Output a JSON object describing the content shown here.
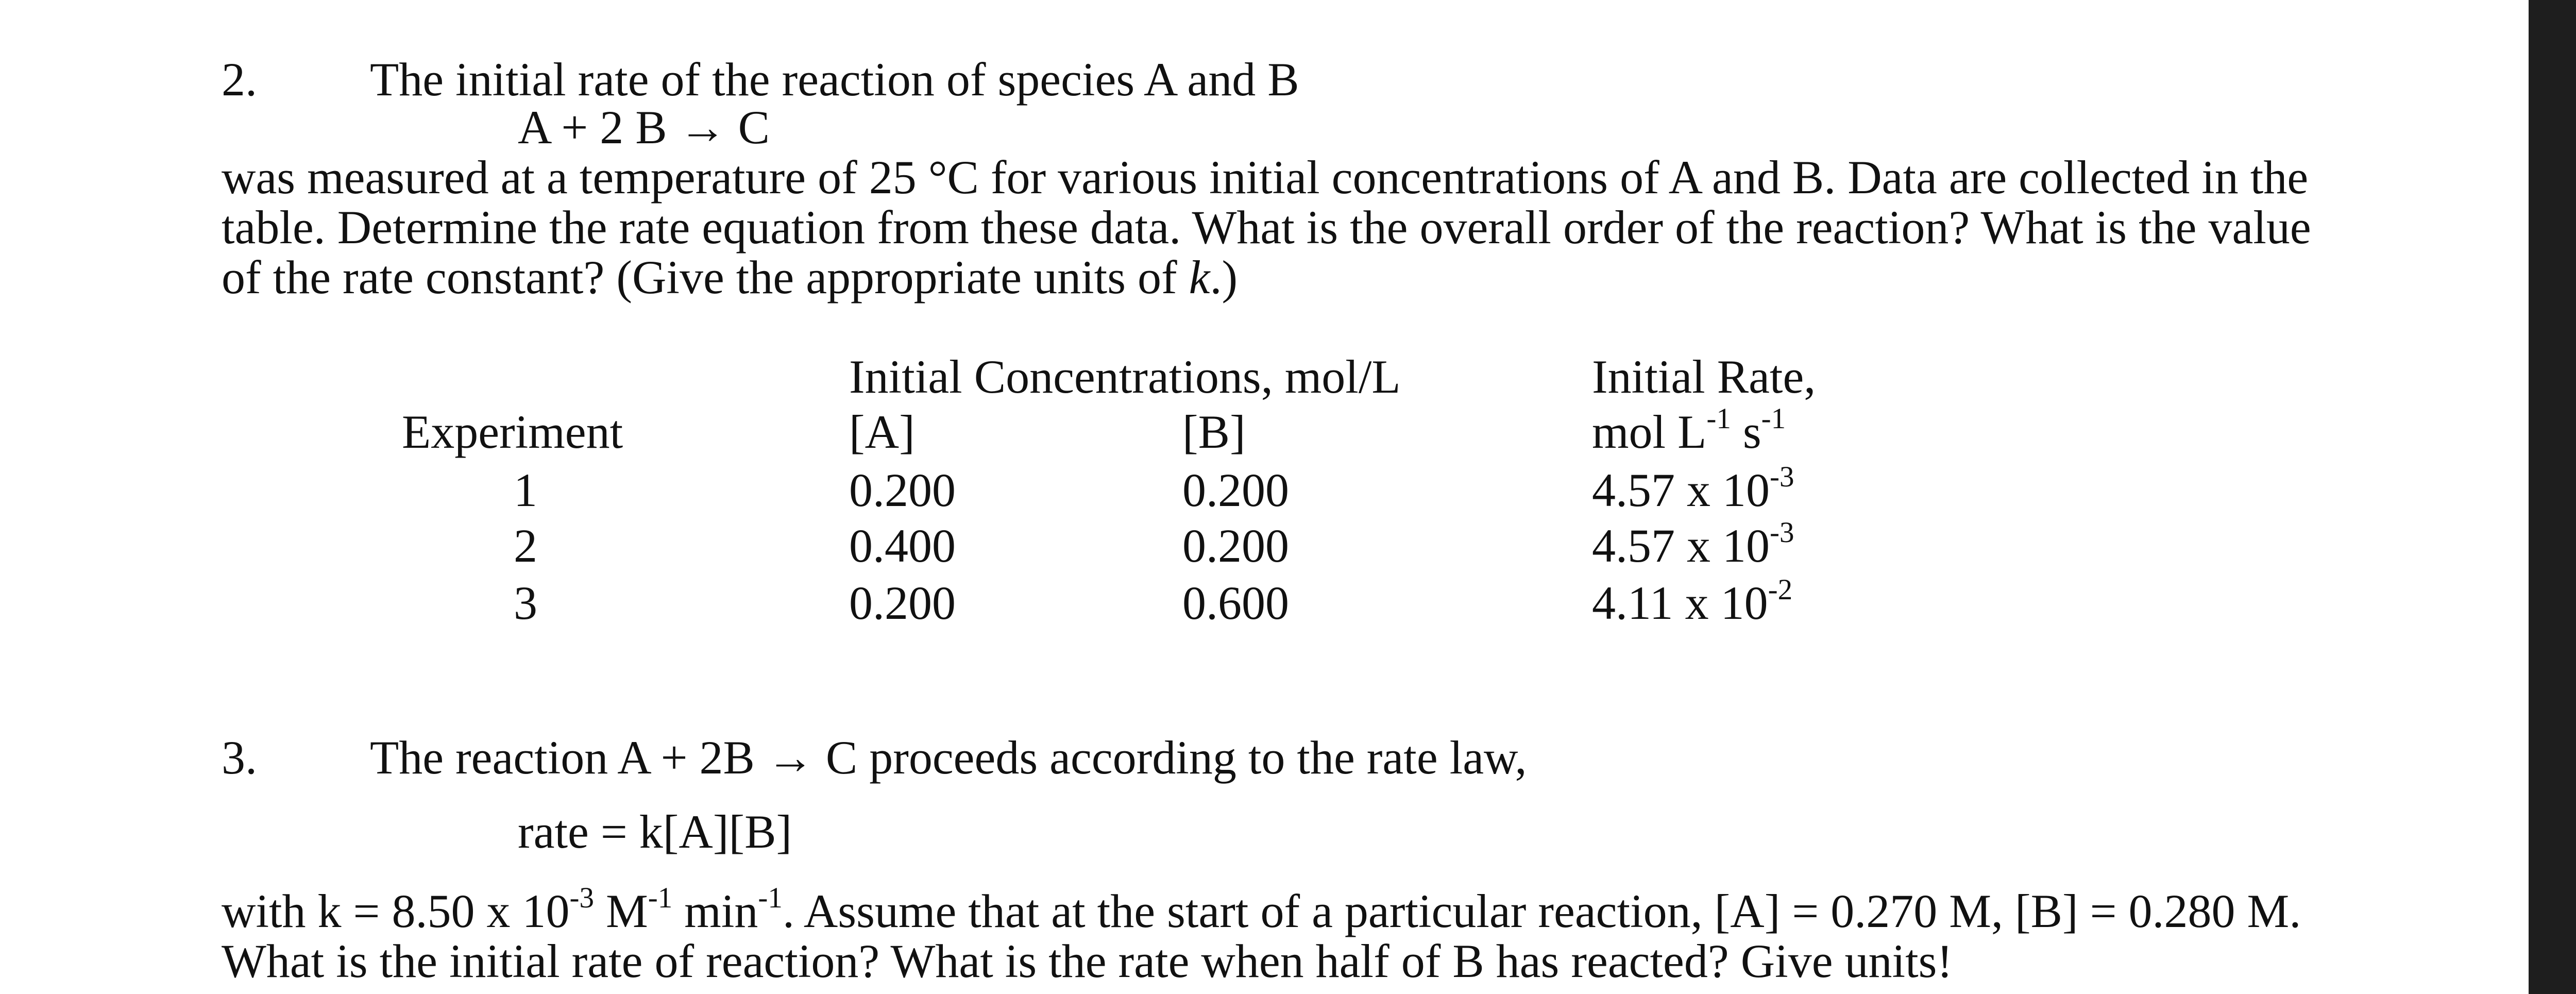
{
  "problem2": {
    "number": "2.",
    "intro": "The initial rate of the reaction of species A and B",
    "equation": "A + 2 B → C",
    "body_lines": [
      "was measured at a temperature of 25 °C for various initial concentrations of A and B. Data are collected in the",
      "table. Determine the rate equation from these data. What is the overall order of the reaction? What is the value"
    ],
    "last_line_prefix": "of the rate constant? (Give the appropriate units of ",
    "last_line_k": "k",
    "last_line_suffix": ".)",
    "table": {
      "header_concentrations": "Initial Concentrations, mol/L",
      "header_rate": "Initial Rate,",
      "header_rate_units_prefix": "mol L",
      "header_rate_units_exp1": "-1",
      "header_rate_units_mid": " s",
      "header_rate_units_exp2": "-1",
      "header_experiment": "Experiment",
      "header_A": "[A]",
      "header_B": "[B]",
      "rows": [
        {
          "experiment": "1",
          "A": "0.200",
          "B": "0.200",
          "rate_base": "4.57 x 10",
          "rate_exp": "-3"
        },
        {
          "experiment": "2",
          "A": "0.400",
          "B": "0.200",
          "rate_base": "4.57 x 10",
          "rate_exp": "-3"
        },
        {
          "experiment": "3",
          "A": "0.200",
          "B": "0.600",
          "rate_base": "4.11 x 10",
          "rate_exp": "-2"
        }
      ]
    }
  },
  "problem3": {
    "number": "3.",
    "intro": "The reaction A + 2B → C proceeds according to the rate law,",
    "rate_law": "rate = k[A][B]",
    "line1_prefix": "with k = 8.50 x 10",
    "line1_exp1": "-3",
    "line1_mid1": " M",
    "line1_exp2": "-1",
    "line1_mid2": " min",
    "line1_exp3": "-1",
    "line1_suffix": ". Assume that at the start of a particular reaction, [A] = 0.270 M, [B] = 0.280 M.",
    "line2": "What is the initial rate of reaction? What is the rate when half of B has reacted? Give units!"
  }
}
